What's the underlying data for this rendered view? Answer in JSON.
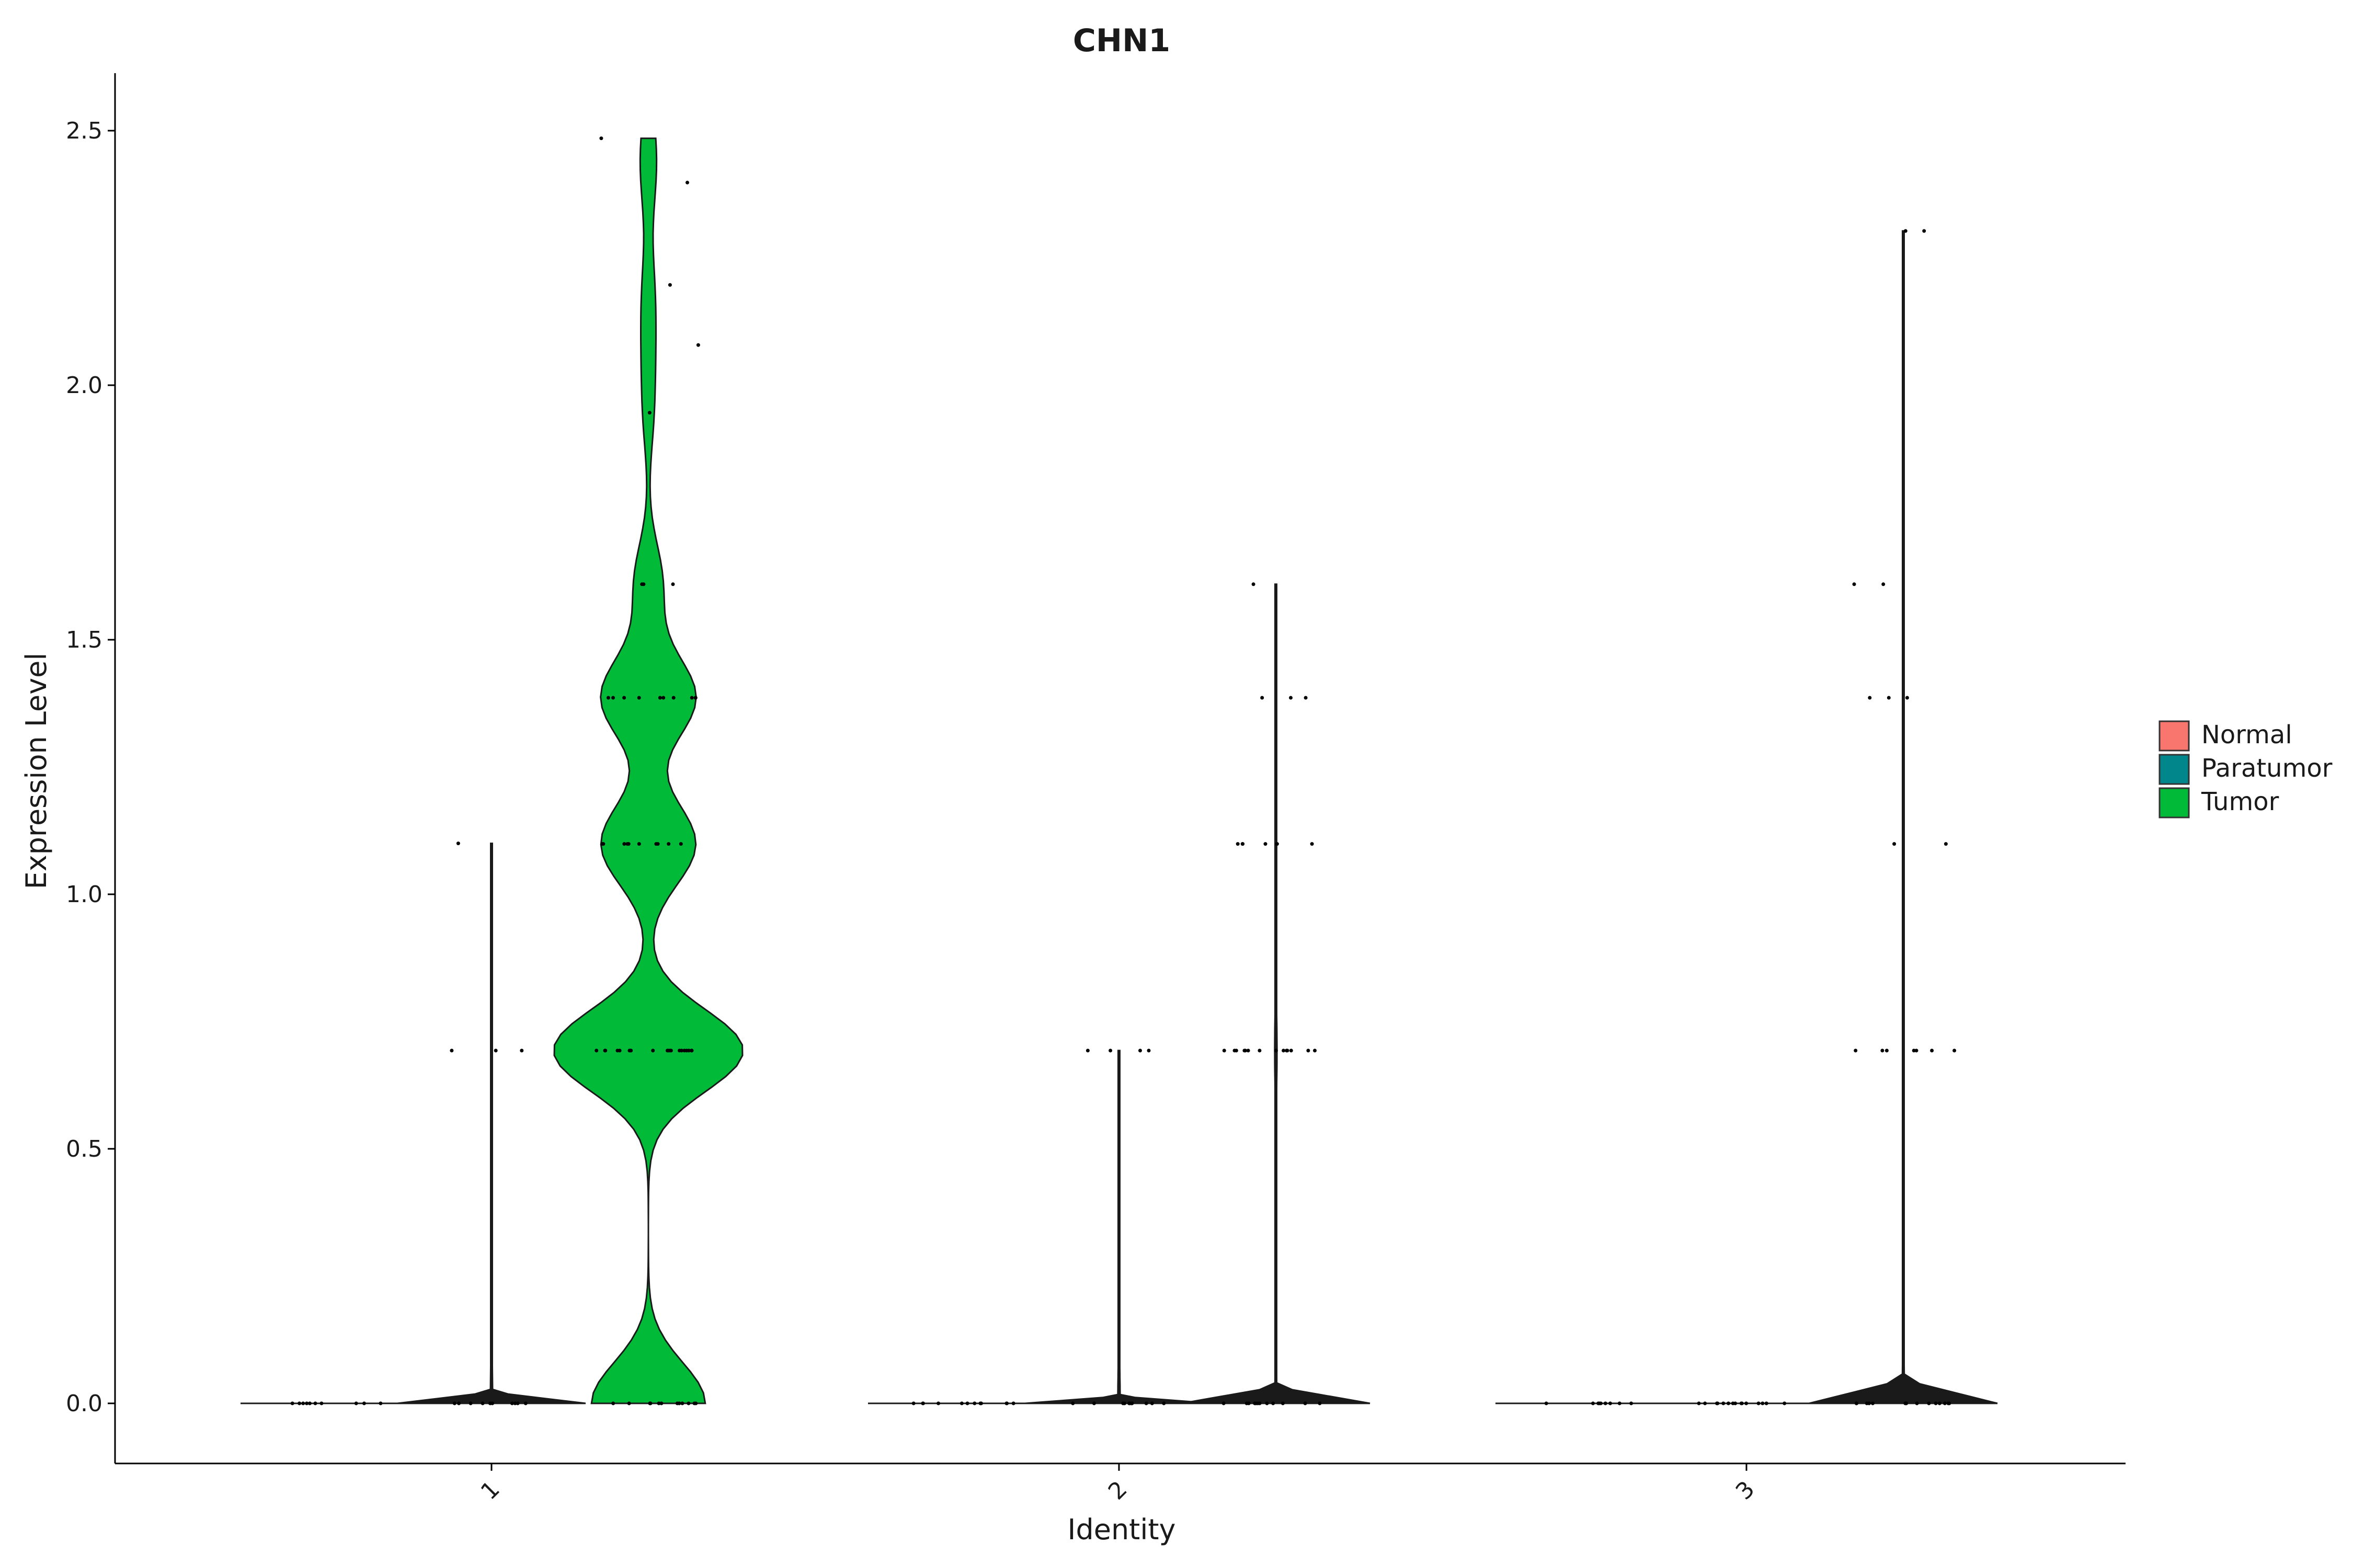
{
  "chart_data": {
    "type": "violin",
    "title": "CHN1",
    "xlabel": "Identity",
    "ylabel": "Expression Level",
    "ylim": [
      -0.12,
      2.62
    ],
    "yticks": [
      0.0,
      0.5,
      1.0,
      1.5,
      2.0,
      2.5
    ],
    "ytick_labels": [
      "0.0",
      "0.5",
      "1.0",
      "1.5",
      "2.0",
      "2.5"
    ],
    "categories": [
      "1",
      "2",
      "3"
    ],
    "grid": false,
    "legend_position": "right",
    "series": [
      {
        "name": "Normal",
        "color": "#F8766D",
        "violins": [
          {
            "category": "1",
            "max": 0.0,
            "points": [
              0,
              0,
              0,
              0,
              0,
              0,
              0,
              0,
              0,
              0
            ]
          },
          {
            "category": "2",
            "max": 0.0,
            "points": [
              0,
              0,
              0,
              0,
              0,
              0,
              0,
              0,
              0,
              0,
              0,
              0
            ]
          },
          {
            "category": "3",
            "max": 0.0,
            "points": [
              0,
              0,
              0,
              0,
              0,
              0,
              0,
              0,
              0
            ]
          }
        ]
      },
      {
        "name": "Paratumor",
        "color": "#00868B",
        "violins": [
          {
            "category": "1",
            "max": 1.1,
            "points": [
              1.1,
              0.693,
              0.693,
              0.693,
              0,
              0,
              0,
              0,
              0,
              0,
              0,
              0,
              0,
              0
            ]
          },
          {
            "category": "2",
            "max": 0.693,
            "points": [
              0.693,
              0.693,
              0.693,
              0.693,
              0,
              0,
              0,
              0,
              0,
              0,
              0,
              0,
              0,
              0,
              0
            ]
          },
          {
            "category": "3",
            "max": 0.0,
            "points": [
              0,
              0,
              0,
              0,
              0,
              0,
              0,
              0,
              0,
              0,
              0,
              0,
              0,
              0,
              0
            ]
          }
        ]
      },
      {
        "name": "Tumor",
        "color": "#00BA38",
        "violins": [
          {
            "category": "1",
            "max": 2.485,
            "points": [
              2.485,
              2.398,
              2.197,
              2.079,
              1.946,
              1.609,
              1.609,
              1.609,
              1.386,
              1.386,
              1.386,
              1.386,
              1.386,
              1.386,
              1.386,
              1.386,
              1.386,
              1.386,
              1.099,
              1.099,
              1.099,
              1.099,
              1.099,
              1.099,
              1.099,
              1.099,
              1.099,
              1.099,
              0.693,
              0.693,
              0.693,
              0.693,
              0.693,
              0.693,
              0.693,
              0.693,
              0.693,
              0.693,
              0.693,
              0.693,
              0.693,
              0.693,
              0.693,
              0.693,
              0.693,
              0.693,
              0.693,
              0.693,
              0,
              0,
              0,
              0,
              0,
              0,
              0,
              0,
              0,
              0,
              0,
              0
            ]
          },
          {
            "category": "2",
            "max": 1.609,
            "points": [
              1.609,
              1.386,
              1.386,
              1.386,
              1.099,
              1.099,
              1.099,
              1.099,
              1.099,
              1.099,
              0.693,
              0.693,
              0.693,
              0.693,
              0.693,
              0.693,
              0.693,
              0.693,
              0.693,
              0.693,
              0.693,
              0.693,
              0.693,
              0.693,
              0,
              0,
              0,
              0,
              0,
              0,
              0,
              0,
              0,
              0,
              0,
              0
            ]
          },
          {
            "category": "3",
            "max": 2.303,
            "points": [
              2.303,
              2.303,
              1.609,
              1.609,
              1.386,
              1.386,
              1.386,
              1.099,
              1.099,
              0.693,
              0.693,
              0.693,
              0.693,
              0.693,
              0.693,
              0.693,
              0,
              0,
              0,
              0,
              0,
              0,
              0,
              0,
              0,
              0,
              0,
              0,
              0,
              0
            ]
          }
        ]
      }
    ]
  }
}
